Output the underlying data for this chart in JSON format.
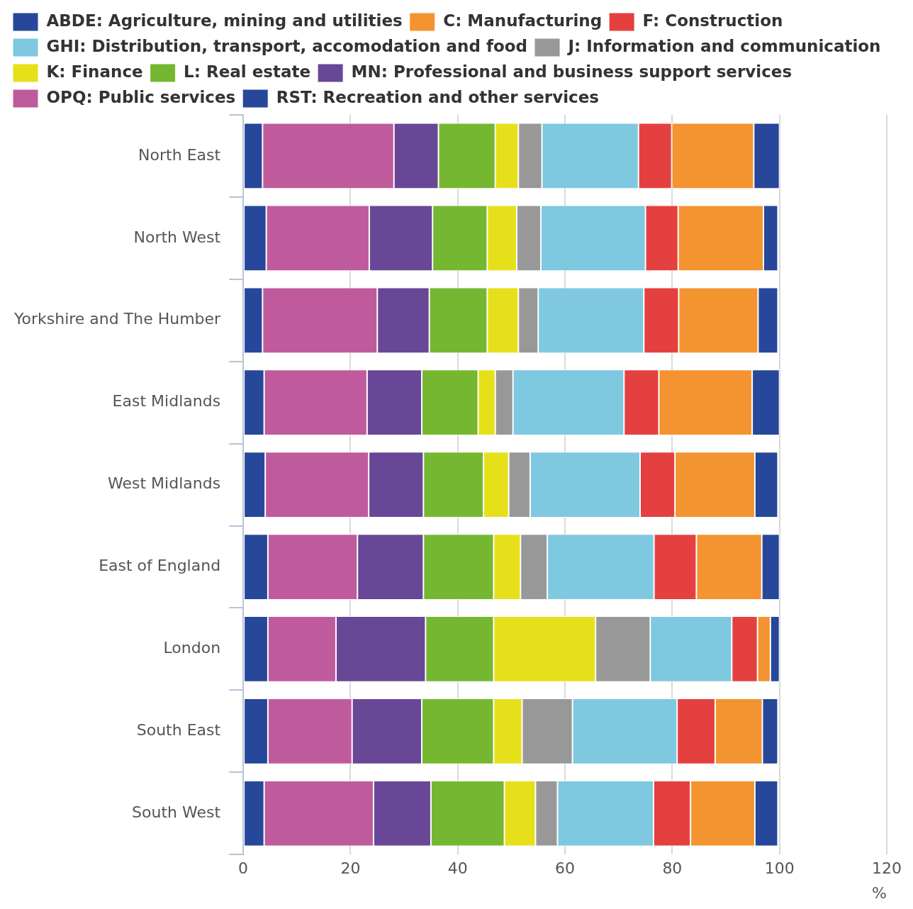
{
  "chart_data": {
    "type": "bar",
    "orientation": "horizontal",
    "stacked": true,
    "xlabel": "%",
    "categories": [
      "North East",
      "North West",
      "Yorkshire and The Humber",
      "East Midlands",
      "West Midlands",
      "East of England",
      "London",
      "South East",
      "South West"
    ],
    "xlim": [
      0,
      120
    ],
    "xticks": [
      0,
      20,
      40,
      60,
      80,
      100,
      120
    ],
    "grid": "x",
    "legend": "top",
    "series": [
      {
        "name": "RST: Recreation and other services",
        "color": "#26479a",
        "values": [
          3.6,
          4.3,
          3.6,
          3.9,
          4.1,
          4.6,
          4.6,
          4.6,
          3.9
        ]
      },
      {
        "name": "OPQ: Public services",
        "color": "#bf5b9d",
        "values": [
          24.5,
          19.2,
          21.4,
          19.2,
          19.3,
          16.7,
          12.7,
          15.7,
          20.4
        ]
      },
      {
        "name": "MN: Professional and business support services",
        "color": "#684796",
        "values": [
          8.3,
          11.8,
          9.7,
          10.2,
          10.2,
          12.3,
          16.7,
          13.0,
          10.7
        ]
      },
      {
        "name": "L: Real estate",
        "color": "#76b731",
        "values": [
          10.6,
          10.2,
          10.8,
          10.5,
          11.2,
          13.1,
          12.7,
          13.4,
          13.7
        ]
      },
      {
        "name": "K: Finance",
        "color": "#e6e01a",
        "values": [
          4.3,
          5.5,
          5.8,
          3.2,
          4.7,
          5.0,
          19.0,
          5.3,
          5.8
        ]
      },
      {
        "name": "J: Information and communication",
        "color": "#989898",
        "values": [
          4.4,
          4.5,
          3.7,
          3.3,
          4.0,
          5.0,
          10.2,
          9.4,
          4.1
        ]
      },
      {
        "name": "GHI: Distribution, transport, accomodation and food",
        "color": "#7ec8e0",
        "values": [
          18.0,
          19.5,
          19.7,
          20.7,
          20.5,
          19.9,
          15.2,
          19.5,
          17.9
        ]
      },
      {
        "name": "F: Construction",
        "color": "#e54040",
        "values": [
          6.2,
          6.1,
          6.5,
          6.5,
          6.5,
          7.9,
          4.8,
          7.1,
          6.9
        ]
      },
      {
        "name": "C: Manufacturing",
        "color": "#f39431",
        "values": [
          15.3,
          15.9,
          14.8,
          17.4,
          14.9,
          12.2,
          2.4,
          8.8,
          12.0
        ]
      },
      {
        "name": "ABDE: Agriculture, mining and utilities",
        "color": "#26479a",
        "values": [
          4.8,
          2.7,
          3.7,
          5.1,
          4.3,
          3.3,
          1.7,
          2.9,
          4.3
        ]
      }
    ]
  }
}
